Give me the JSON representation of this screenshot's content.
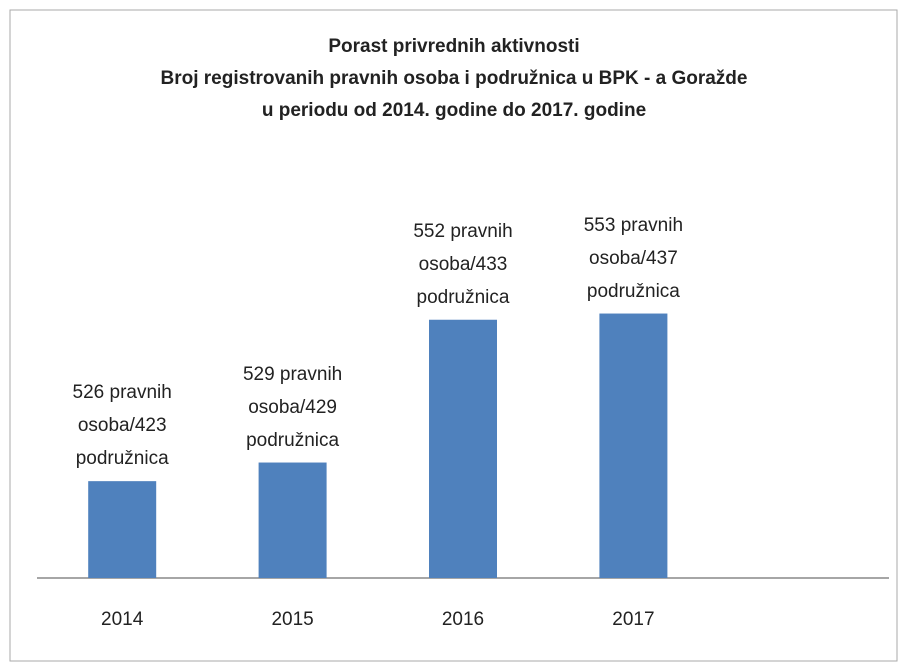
{
  "chart_data": {
    "type": "bar",
    "title": [
      "Porast privrednih aktivnosti",
      "Broj registrovanih pravnih osoba i podružnica u BPK - a Goražde",
      "u periodu od 2014. godine do 2017. godine"
    ],
    "categories": [
      "2014",
      "2015",
      "2016",
      "2017"
    ],
    "values": [
      526,
      529,
      552,
      553
    ],
    "value_labels": [
      "526 pravnih osoba/423 podružnica",
      "529 pravnih osoba/429 podružnica",
      "552 pravnih osoba/433 podružnica",
      "553 pravnih osoba/437 podružnica"
    ],
    "color": "#4f81bd",
    "ylim": [
      510.4,
      570
    ]
  }
}
